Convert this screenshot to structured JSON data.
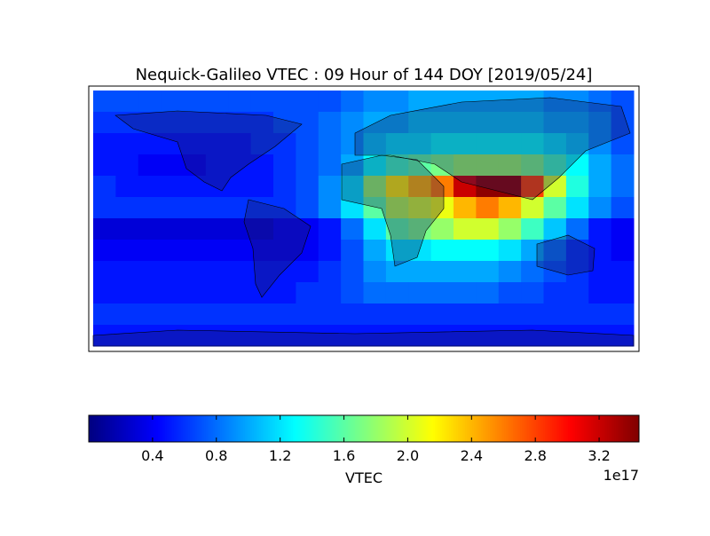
{
  "chart_data": {
    "type": "heatmap",
    "title": "Nequick-Galileo VTEC : 09 Hour of 144 DOY [2019/05/24]",
    "values": [
      [
        0.7,
        0.7,
        0.7,
        0.7,
        0.7,
        0.7,
        0.7,
        0.7,
        0.7,
        0.7,
        0.7,
        0.8,
        0.9,
        0.9,
        1.0,
        1.0,
        1.0,
        1.0,
        1.0,
        1.0,
        0.9,
        0.9,
        0.8,
        0.7
      ],
      [
        0.6,
        0.6,
        0.6,
        0.6,
        0.6,
        0.6,
        0.6,
        0.6,
        0.7,
        0.7,
        0.8,
        0.9,
        1.0,
        1.0,
        1.1,
        1.1,
        1.1,
        1.1,
        1.1,
        1.1,
        1.0,
        1.0,
        0.9,
        0.7
      ],
      [
        0.5,
        0.5,
        0.5,
        0.5,
        0.5,
        0.5,
        0.5,
        0.6,
        0.6,
        0.7,
        0.8,
        0.9,
        1.1,
        1.2,
        1.2,
        1.3,
        1.3,
        1.3,
        1.3,
        1.3,
        1.2,
        1.1,
        0.9,
        0.7
      ],
      [
        0.5,
        0.5,
        0.4,
        0.4,
        0.4,
        0.5,
        0.5,
        0.5,
        0.6,
        0.7,
        0.8,
        1.0,
        1.3,
        1.5,
        1.6,
        1.7,
        1.8,
        1.8,
        1.8,
        1.7,
        1.5,
        1.3,
        1.0,
        0.8
      ],
      [
        0.6,
        0.5,
        0.5,
        0.5,
        0.5,
        0.5,
        0.5,
        0.5,
        0.6,
        0.7,
        0.9,
        1.2,
        1.8,
        2.2,
        2.4,
        2.6,
        3.2,
        3.4,
        3.4,
        2.8,
        2.0,
        1.4,
        1.0,
        0.8
      ],
      [
        0.6,
        0.6,
        0.6,
        0.6,
        0.6,
        0.6,
        0.6,
        0.6,
        0.6,
        0.7,
        0.9,
        1.2,
        1.6,
        1.9,
        2.0,
        2.1,
        2.4,
        2.6,
        2.4,
        2.0,
        1.6,
        1.2,
        0.9,
        0.7
      ],
      [
        0.3,
        0.3,
        0.3,
        0.3,
        0.3,
        0.3,
        0.3,
        0.3,
        0.4,
        0.4,
        0.5,
        0.8,
        1.2,
        1.6,
        1.7,
        1.8,
        2.0,
        2.0,
        1.8,
        1.5,
        1.1,
        0.8,
        0.5,
        0.4
      ],
      [
        0.4,
        0.4,
        0.4,
        0.4,
        0.4,
        0.4,
        0.4,
        0.4,
        0.4,
        0.4,
        0.5,
        0.7,
        1.0,
        1.2,
        1.2,
        1.3,
        1.3,
        1.3,
        1.2,
        1.0,
        0.8,
        0.6,
        0.5,
        0.4
      ],
      [
        0.5,
        0.5,
        0.5,
        0.5,
        0.5,
        0.5,
        0.5,
        0.5,
        0.5,
        0.5,
        0.6,
        0.7,
        0.9,
        1.0,
        1.0,
        1.0,
        1.0,
        1.0,
        0.9,
        0.8,
        0.7,
        0.6,
        0.5,
        0.5
      ],
      [
        0.5,
        0.5,
        0.5,
        0.5,
        0.5,
        0.5,
        0.5,
        0.5,
        0.5,
        0.6,
        0.6,
        0.7,
        0.8,
        0.8,
        0.8,
        0.8,
        0.8,
        0.8,
        0.7,
        0.7,
        0.6,
        0.6,
        0.5,
        0.5
      ],
      [
        0.6,
        0.6,
        0.6,
        0.6,
        0.6,
        0.6,
        0.6,
        0.6,
        0.6,
        0.6,
        0.6,
        0.6,
        0.6,
        0.6,
        0.6,
        0.6,
        0.6,
        0.6,
        0.6,
        0.6,
        0.6,
        0.6,
        0.6,
        0.6
      ],
      [
        0.5,
        0.5,
        0.5,
        0.5,
        0.5,
        0.5,
        0.5,
        0.5,
        0.5,
        0.5,
        0.5,
        0.5,
        0.5,
        0.5,
        0.5,
        0.5,
        0.5,
        0.5,
        0.5,
        0.5,
        0.5,
        0.5,
        0.5,
        0.5
      ]
    ],
    "colorbar": {
      "label": "VTEC",
      "offset": "1e17",
      "colormap": "jet",
      "clim": [
        0,
        3.45
      ],
      "ticks": [
        0.4,
        0.8,
        1.2,
        1.6,
        {
          "value": 2,
          "label": "2.0"
        },
        2.4,
        2.8,
        3.2
      ]
    }
  }
}
